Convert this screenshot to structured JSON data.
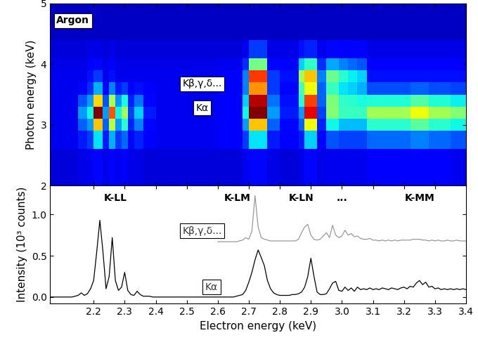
{
  "chart_data": [
    {
      "type": "heatmap",
      "y_label": "Photon energy (keV)",
      "xlim": [
        2.06,
        3.4
      ],
      "ylim": [
        2,
        5
      ],
      "xticks": [
        2.2,
        2.3,
        2.4,
        2.5,
        2.6,
        2.7,
        2.8,
        2.9,
        3.0,
        3.1,
        3.2,
        3.3,
        3.4
      ],
      "yticks": [
        2,
        3,
        4,
        5
      ],
      "tick_labels": "y",
      "x_edges": [
        2.06,
        2.15,
        2.18,
        2.2,
        2.23,
        2.25,
        2.27,
        2.29,
        2.31,
        2.33,
        2.36,
        2.4,
        2.5,
        2.6,
        2.68,
        2.7,
        2.76,
        2.8,
        2.86,
        2.88,
        2.92,
        2.95,
        2.99,
        3.02,
        3.05,
        3.08,
        3.15,
        3.22,
        3.28,
        3.35,
        3.4
      ],
      "y_edges": [
        2.0,
        2.6,
        2.9,
        3.1,
        3.3,
        3.5,
        3.7,
        3.9,
        4.1,
        4.4,
        5.0
      ],
      "cells": [
        [
          0.08,
          0.09,
          0.1,
          0.13,
          0.09,
          0.12,
          0.1,
          0.11,
          0.09,
          0.09,
          0.08,
          0.08,
          0.08,
          0.08,
          0.1,
          0.13,
          0.09,
          0.08,
          0.09,
          0.13,
          0.09,
          0.1,
          0.1,
          0.1,
          0.1,
          0.11,
          0.11,
          0.11,
          0.11,
          0.1
        ],
        [
          0.1,
          0.15,
          0.18,
          0.35,
          0.15,
          0.3,
          0.18,
          0.23,
          0.13,
          0.16,
          0.11,
          0.1,
          0.1,
          0.11,
          0.18,
          0.35,
          0.15,
          0.11,
          0.15,
          0.33,
          0.13,
          0.21,
          0.19,
          0.19,
          0.19,
          0.23,
          0.23,
          0.25,
          0.23,
          0.21
        ],
        [
          0.1,
          0.22,
          0.28,
          0.7,
          0.22,
          0.58,
          0.28,
          0.4,
          0.16,
          0.25,
          0.13,
          0.1,
          0.1,
          0.11,
          0.28,
          0.7,
          0.22,
          0.13,
          0.22,
          0.64,
          0.16,
          0.37,
          0.31,
          0.31,
          0.31,
          0.4,
          0.4,
          0.46,
          0.4,
          0.37
        ],
        [
          0.1,
          0.28,
          0.37,
          1.0,
          0.28,
          0.82,
          0.37,
          0.55,
          0.19,
          0.33,
          0.15,
          0.1,
          0.1,
          0.12,
          0.37,
          1.0,
          0.28,
          0.15,
          0.28,
          0.91,
          0.19,
          0.51,
          0.42,
          0.42,
          0.42,
          0.55,
          0.55,
          0.64,
          0.55,
          0.51
        ],
        [
          0.1,
          0.21,
          0.28,
          0.68,
          0.21,
          0.56,
          0.27,
          0.38,
          0.16,
          0.24,
          0.13,
          0.1,
          0.1,
          0.12,
          0.33,
          0.95,
          0.24,
          0.14,
          0.39,
          0.84,
          0.22,
          0.5,
          0.41,
          0.4,
          0.38,
          0.39,
          0.39,
          0.45,
          0.39,
          0.36
        ],
        [
          0.1,
          0.13,
          0.17,
          0.3,
          0.13,
          0.25,
          0.15,
          0.18,
          0.12,
          0.14,
          0.11,
          0.1,
          0.1,
          0.11,
          0.25,
          0.75,
          0.18,
          0.13,
          0.43,
          0.64,
          0.22,
          0.42,
          0.35,
          0.33,
          0.3,
          0.2,
          0.2,
          0.22,
          0.2,
          0.19
        ],
        [
          0.1,
          0.1,
          0.14,
          0.18,
          0.1,
          0.14,
          0.1,
          0.1,
          0.1,
          0.1,
          0.1,
          0.1,
          0.1,
          0.12,
          0.25,
          0.85,
          0.18,
          0.14,
          0.55,
          0.7,
          0.25,
          0.48,
          0.4,
          0.36,
          0.33,
          0.14,
          0.14,
          0.14,
          0.14,
          0.14
        ],
        [
          0.09,
          0.09,
          0.11,
          0.13,
          0.09,
          0.11,
          0.09,
          0.09,
          0.09,
          0.09,
          0.09,
          0.09,
          0.09,
          0.1,
          0.17,
          0.49,
          0.13,
          0.11,
          0.33,
          0.41,
          0.17,
          0.29,
          0.25,
          0.23,
          0.21,
          0.11,
          0.11,
          0.11,
          0.11,
          0.11
        ],
        [
          0.08,
          0.08,
          0.09,
          0.09,
          0.08,
          0.09,
          0.08,
          0.08,
          0.08,
          0.08,
          0.08,
          0.08,
          0.08,
          0.08,
          0.1,
          0.18,
          0.09,
          0.09,
          0.14,
          0.16,
          0.1,
          0.13,
          0.12,
          0.12,
          0.11,
          0.09,
          0.09,
          0.09,
          0.09,
          0.09
        ],
        [
          0.06,
          0.06,
          0.06,
          0.06,
          0.06,
          0.06,
          0.06,
          0.06,
          0.06,
          0.06,
          0.06,
          0.06,
          0.06,
          0.06,
          0.06,
          0.06,
          0.06,
          0.06,
          0.06,
          0.06,
          0.06,
          0.06,
          0.06,
          0.06,
          0.06,
          0.06,
          0.06,
          0.06,
          0.06,
          0.06
        ]
      ],
      "color_range": [
        0,
        1
      ],
      "annotations": [
        "Argon",
        "Kβ,γ,δ...",
        "Kα"
      ]
    },
    {
      "type": "line",
      "x_label": "Electron energy (keV)",
      "y_label": "Intensity (10³ counts)",
      "xlim": [
        2.06,
        3.4
      ],
      "ylim": [
        -0.08,
        1.35
      ],
      "xticks": [
        2.2,
        2.3,
        2.4,
        2.5,
        2.6,
        2.7,
        2.8,
        2.9,
        3.0,
        3.1,
        3.2,
        3.3,
        3.4
      ],
      "yticks": [
        {
          "value": 0,
          "label": "0.0"
        },
        {
          "value": 0.5,
          "label": "0.5"
        },
        {
          "value": 1,
          "label": "1.0"
        }
      ],
      "annotations": [
        "K-LL",
        "K-LM",
        "K-LN",
        "...",
        "K-MM"
      ],
      "series": [
        {
          "name": "Kβ,γ,δ...",
          "color": "#999999",
          "x": [
            2.6,
            2.61,
            2.62,
            2.63,
            2.64,
            2.65,
            2.66,
            2.67,
            2.68,
            2.69,
            2.7,
            2.71,
            2.72,
            2.73,
            2.74,
            2.75,
            2.76,
            2.77,
            2.78,
            2.79,
            2.8,
            2.81,
            2.82,
            2.83,
            2.84,
            2.85,
            2.86,
            2.87,
            2.88,
            2.89,
            2.9,
            2.91,
            2.92,
            2.93,
            2.94,
            2.95,
            2.96,
            2.97,
            2.98,
            2.99,
            3.0,
            3.01,
            3.02,
            3.03,
            3.04,
            3.05,
            3.06,
            3.07,
            3.08,
            3.09,
            3.1,
            3.11,
            3.12,
            3.13,
            3.14,
            3.15,
            3.16,
            3.17,
            3.18,
            3.19,
            3.2,
            3.21,
            3.22,
            3.23,
            3.24,
            3.25,
            3.26,
            3.27,
            3.28,
            3.29,
            3.3,
            3.31,
            3.32,
            3.33,
            3.34,
            3.35,
            3.36,
            3.37,
            3.38,
            3.39,
            3.4
          ],
          "values": [
            0.67,
            0.67,
            0.67,
            0.67,
            0.67,
            0.67,
            0.67,
            0.68,
            0.69,
            0.72,
            0.7,
            0.8,
            1.23,
            0.85,
            0.72,
            0.7,
            0.69,
            0.68,
            0.68,
            0.68,
            0.68,
            0.68,
            0.68,
            0.68,
            0.68,
            0.68,
            0.7,
            0.78,
            0.85,
            0.88,
            0.75,
            0.7,
            0.69,
            0.7,
            0.74,
            0.78,
            0.72,
            0.87,
            0.75,
            0.72,
            0.74,
            0.81,
            0.75,
            0.77,
            0.73,
            0.74,
            0.71,
            0.7,
            0.7,
            0.71,
            0.69,
            0.69,
            0.68,
            0.69,
            0.68,
            0.69,
            0.68,
            0.69,
            0.68,
            0.69,
            0.69,
            0.69,
            0.69,
            0.7,
            0.7,
            0.7,
            0.69,
            0.69,
            0.68,
            0.69,
            0.68,
            0.69,
            0.68,
            0.68,
            0.69,
            0.68,
            0.68,
            0.69,
            0.68,
            0.68,
            0.68
          ]
        },
        {
          "name": "Kα",
          "color": "#000000",
          "x": [
            2.06,
            2.07,
            2.08,
            2.09,
            2.1,
            2.11,
            2.12,
            2.13,
            2.14,
            2.15,
            2.16,
            2.17,
            2.18,
            2.19,
            2.2,
            2.21,
            2.22,
            2.23,
            2.24,
            2.25,
            2.26,
            2.27,
            2.28,
            2.29,
            2.3,
            2.31,
            2.32,
            2.33,
            2.34,
            2.35,
            2.36,
            2.37,
            2.38,
            2.39,
            2.4,
            2.41,
            2.42,
            2.43,
            2.44,
            2.45,
            2.46,
            2.47,
            2.48,
            2.49,
            2.5,
            2.51,
            2.52,
            2.53,
            2.54,
            2.55,
            2.56,
            2.57,
            2.58,
            2.59,
            2.6,
            2.61,
            2.62,
            2.63,
            2.64,
            2.65,
            2.66,
            2.67,
            2.68,
            2.69,
            2.7,
            2.71,
            2.72,
            2.73,
            2.74,
            2.75,
            2.76,
            2.77,
            2.78,
            2.79,
            2.8,
            2.81,
            2.82,
            2.83,
            2.84,
            2.85,
            2.86,
            2.87,
            2.88,
            2.89,
            2.9,
            2.91,
            2.92,
            2.93,
            2.94,
            2.95,
            2.96,
            2.97,
            2.98,
            2.99,
            3.0,
            3.01,
            3.02,
            3.03,
            3.04,
            3.05,
            3.06,
            3.07,
            3.08,
            3.09,
            3.1,
            3.11,
            3.12,
            3.13,
            3.14,
            3.15,
            3.16,
            3.17,
            3.18,
            3.19,
            3.2,
            3.21,
            3.22,
            3.23,
            3.24,
            3.25,
            3.26,
            3.27,
            3.28,
            3.29,
            3.3,
            3.31,
            3.32,
            3.33,
            3.34,
            3.35,
            3.36,
            3.37,
            3.38,
            3.39,
            3.4
          ],
          "values": [
            0,
            0,
            0,
            0,
            0,
            0,
            0,
            0,
            0.01,
            0.02,
            0.05,
            0.02,
            0.04,
            0.1,
            0.2,
            0.55,
            0.93,
            0.55,
            0.1,
            0.25,
            0.72,
            0.2,
            0.08,
            0.12,
            0.3,
            0.08,
            0.03,
            0.02,
            0.07,
            0.03,
            0.01,
            0.01,
            0.01,
            0,
            0,
            0,
            0,
            0,
            0,
            0,
            0,
            0,
            0,
            0,
            0,
            0,
            0,
            0,
            0,
            0,
            0,
            0,
            0,
            0,
            0,
            0,
            0,
            0,
            0,
            0,
            0.01,
            0.02,
            0.03,
            0.08,
            0.18,
            0.3,
            0.45,
            0.57,
            0.48,
            0.38,
            0.2,
            0.1,
            0.05,
            0.03,
            0.02,
            0.02,
            0.02,
            0.02,
            0.03,
            0.03,
            0.04,
            0.06,
            0.12,
            0.25,
            0.47,
            0.25,
            0.06,
            0.03,
            0.03,
            0.04,
            0.1,
            0.17,
            0.19,
            0.08,
            0.07,
            0.12,
            0.08,
            0.11,
            0.07,
            0.12,
            0.09,
            0.1,
            0.09,
            0.11,
            0.09,
            0.1,
            0.09,
            0.11,
            0.1,
            0.09,
            0.11,
            0.1,
            0.09,
            0.11,
            0.12,
            0.1,
            0.13,
            0.12,
            0.17,
            0.2,
            0.15,
            0.18,
            0.12,
            0.13,
            0.1,
            0.11,
            0.09,
            0.1,
            0.09,
            0.1,
            0.09,
            0.1,
            0.09,
            0.1,
            0.09
          ]
        }
      ]
    }
  ]
}
